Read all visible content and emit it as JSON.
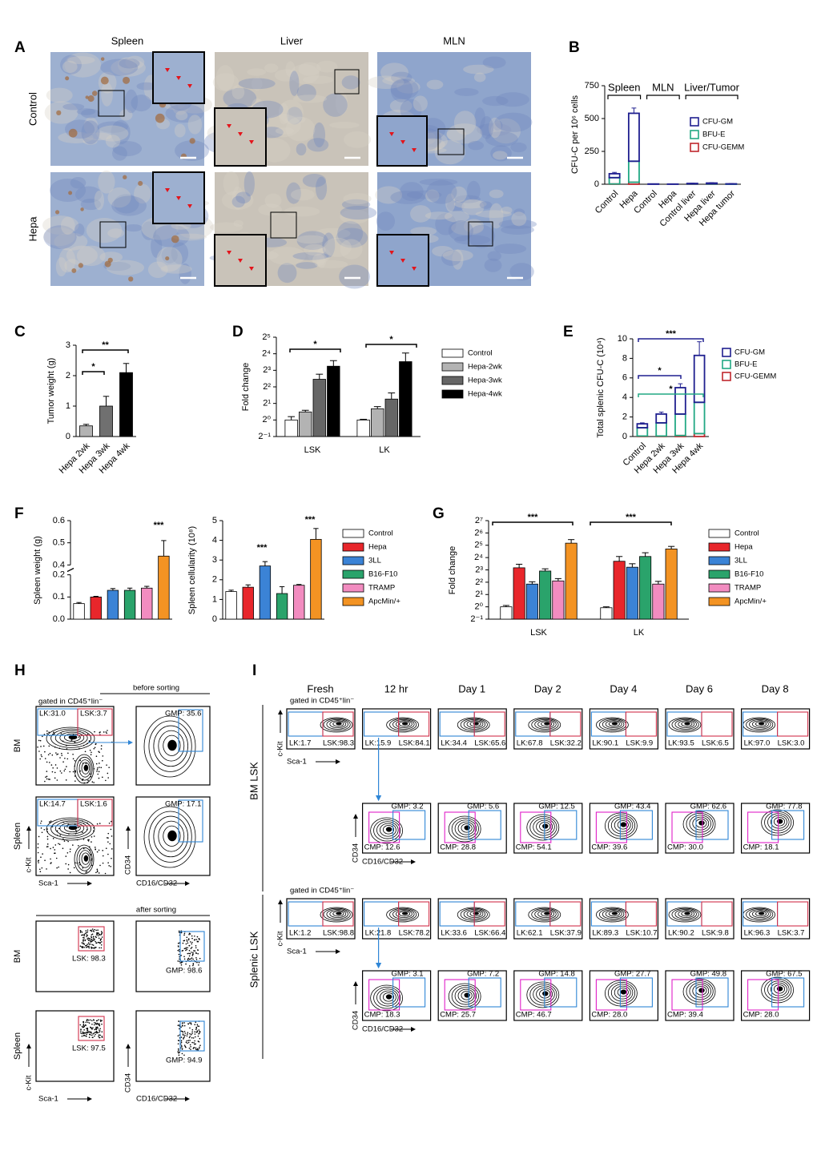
{
  "panel_labels": [
    "A",
    "B",
    "C",
    "D",
    "E",
    "F",
    "G",
    "H",
    "I"
  ],
  "micrographs": {
    "columns": [
      "Spleen",
      "Liver",
      "MLN"
    ],
    "rows": [
      "Control",
      "Hepa"
    ]
  },
  "chart_data": [
    {
      "type": "bar",
      "stacked": true,
      "y_label": "CFU-C per 10⁶ cells",
      "groups": [
        "Spleen",
        "MLN",
        "Liver/Tumor"
      ],
      "categories": [
        "Control",
        "Hepa",
        "Control",
        "Hepa",
        "Control liver",
        "Hepa liver",
        "Hepa tumor"
      ],
      "ylim": [
        0,
        750
      ],
      "yticks": [
        0,
        250,
        500,
        750
      ],
      "series": [
        {
          "name": "CFU-GEMM",
          "color": "#c0272d",
          "values": [
            2,
            15,
            0,
            0,
            1,
            1,
            0
          ]
        },
        {
          "name": "BFU-E",
          "color": "#22a884",
          "values": [
            48,
            160,
            0,
            0,
            2,
            3,
            1
          ]
        },
        {
          "name": "CFU-GM",
          "color": "#1f1f8f",
          "values": [
            30,
            365,
            2,
            1,
            3,
            5,
            2
          ],
          "errors": [
            10,
            40,
            1,
            1,
            2,
            3,
            2
          ]
        }
      ]
    },
    {
      "type": "bar",
      "y_label": "Tumor weight (g)",
      "categories": [
        "Hepa 2wk",
        "Hepa 3wk",
        "Hepa 4wk"
      ],
      "values": [
        0.35,
        1.0,
        2.1
      ],
      "errors": [
        0.05,
        0.32,
        0.3
      ],
      "colors": [
        "#b3b3b3",
        "#707070",
        "#000000"
      ],
      "ylim": [
        0,
        3
      ],
      "yticks": [
        0,
        1,
        2,
        3
      ],
      "annotations": [
        {
          "text": "*"
        },
        {
          "text": "**"
        }
      ]
    },
    {
      "type": "bar",
      "log_base": 2,
      "y_label": "Fold change",
      "categories": [
        "LSK",
        "LK"
      ],
      "ylim": [
        0.5,
        32
      ],
      "yticks": [
        {
          "value": 0.5,
          "label": "2⁻¹"
        },
        {
          "value": 1,
          "label": "2⁰"
        },
        {
          "value": 2,
          "label": "2¹"
        },
        {
          "value": 4,
          "label": "2²"
        },
        {
          "value": 8,
          "label": "2³"
        },
        {
          "value": 16,
          "label": "2⁴"
        },
        {
          "value": 32,
          "label": "2⁵"
        }
      ],
      "series": [
        {
          "name": "Control",
          "color": "#ffffff",
          "values": [
            1,
            1
          ],
          "errors": [
            0.15,
            0.03
          ]
        },
        {
          "name": "Hepa-2wk",
          "color": "#b3b3b3",
          "values": [
            1.4,
            1.6
          ],
          "errors": [
            0.1,
            0.15
          ]
        },
        {
          "name": "Hepa-3wk",
          "color": "#666666",
          "values": [
            5.5,
            2.4
          ],
          "errors": [
            1.3,
            0.7
          ]
        },
        {
          "name": "Hepa-4wk",
          "color": "#000000",
          "values": [
            9.5,
            11.5
          ],
          "errors": [
            2.5,
            5
          ]
        }
      ],
      "annotations": [
        {
          "text": "*"
        },
        {
          "text": "*"
        }
      ]
    },
    {
      "type": "bar",
      "stacked": true,
      "y_label": "Total splenic CFU-C (10⁴)",
      "categories": [
        "Control",
        "Hepa 2wk",
        "Hepa 3wk",
        "Hepa 4wk"
      ],
      "ylim": [
        0,
        10
      ],
      "yticks": [
        0,
        2,
        4,
        6,
        8,
        10
      ],
      "series": [
        {
          "name": "CFU-GEMM",
          "color": "#c0272d",
          "values": [
            0.05,
            0.05,
            0.1,
            0.3
          ]
        },
        {
          "name": "BFU-E",
          "color": "#22a884",
          "values": [
            0.85,
            1.35,
            2.2,
            3.2
          ]
        },
        {
          "name": "CFU-GM",
          "color": "#1f1f8f",
          "values": [
            0.4,
            0.9,
            2.7,
            4.8
          ],
          "errors": [
            0.1,
            0.2,
            0.4,
            1.4
          ]
        }
      ],
      "annotations": [
        {
          "text": "***",
          "color": "#1f1f8f"
        },
        {
          "text": "*",
          "color": "#1f1f8f"
        },
        {
          "text": "*",
          "color": "#22a884"
        }
      ]
    },
    {
      "type": "bar",
      "y_label": "Spleen weight (g)",
      "values": [
        0.07,
        0.1,
        0.13,
        0.13,
        0.14,
        0.44
      ],
      "errors": [
        0.005,
        0.003,
        0.008,
        0.01,
        0.008,
        0.07
      ],
      "colors": [
        "#ffffff",
        "#e8262b",
        "#3b83d6",
        "#2aa36b",
        "#f28cc0",
        "#f39323"
      ],
      "ylim": [
        0,
        0.6
      ],
      "axis_break": [
        0.2,
        0.4
      ],
      "yticks": [
        {
          "value": 0,
          "label": "0.0"
        },
        0.1,
        0.2,
        0.4,
        0.5,
        0.6
      ],
      "annotations": [
        {
          "text": "***"
        }
      ]
    },
    {
      "type": "bar",
      "y_label": "Spleen cellularity (10⁸)",
      "categories": [
        "Control",
        "Hepa",
        "3LL",
        "B16-F10",
        "TRAMP",
        "ApcMin/+"
      ],
      "values": [
        1.4,
        1.62,
        2.7,
        1.3,
        1.72,
        4.05
      ],
      "errors": [
        0.07,
        0.12,
        0.22,
        0.35,
        0.04,
        0.55
      ],
      "colors": [
        "#ffffff",
        "#e8262b",
        "#3b83d6",
        "#2aa36b",
        "#f28cc0",
        "#f39323"
      ],
      "ylim": [
        0,
        5
      ],
      "yticks": [
        0,
        1,
        2,
        3,
        4,
        5
      ],
      "annotations": [
        {
          "text": "***"
        },
        {
          "text": "***"
        }
      ]
    },
    {
      "type": "bar",
      "log_base": 2,
      "y_label": "Fold change",
      "categories": [
        "LSK",
        "LK"
      ],
      "ylim": [
        0.5,
        128
      ],
      "yticks": [
        {
          "value": 0.5,
          "label": "2⁻¹"
        },
        {
          "value": 1,
          "label": "2⁰"
        },
        {
          "value": 2,
          "label": "2¹"
        },
        {
          "value": 4,
          "label": "2²"
        },
        {
          "value": 8,
          "label": "2³"
        },
        {
          "value": 16,
          "label": "2⁴"
        },
        {
          "value": 32,
          "label": "2⁵"
        },
        {
          "value": 64,
          "label": "2⁶"
        },
        {
          "value": 128,
          "label": "2⁷"
        }
      ],
      "series": [
        {
          "name": "Control",
          "color": "#ffffff",
          "values": [
            1,
            0.95
          ],
          "errors": [
            0.08,
            0.05
          ]
        },
        {
          "name": "Hepa",
          "color": "#e8262b",
          "values": [
            9,
            13
          ],
          "errors": [
            2,
            4
          ]
        },
        {
          "name": "3LL",
          "color": "#3b83d6",
          "values": [
            3.6,
            9.3
          ],
          "errors": [
            0.5,
            2
          ]
        },
        {
          "name": "B16-F10",
          "color": "#2aa36b",
          "values": [
            7.5,
            17
          ],
          "errors": [
            1,
            4
          ]
        },
        {
          "name": "TRAMP",
          "color": "#f28cc0",
          "values": [
            4.3,
            3.6
          ],
          "errors": [
            0.6,
            0.6
          ]
        },
        {
          "name": "ApcMin/+",
          "color": "#f39323",
          "values": [
            36,
            26
          ],
          "errors": [
            8,
            4
          ]
        }
      ],
      "annotations": [
        {
          "text": "***"
        },
        {
          "text": "***"
        }
      ]
    }
  ],
  "axis_labels": {
    "ckit": "c-Kit",
    "sca1": "Sca-1",
    "cd34": "CD34",
    "cd16": "CD16/CD32"
  },
  "gate_note": "gated in CD45⁺lin⁻",
  "sorting": {
    "before_title": "before sorting",
    "after_title": "after sorting",
    "rows": [
      "BM",
      "Spleen"
    ],
    "before": [
      [
        "LK:31.0",
        "LSK:3.7",
        "GMP: 35.6"
      ],
      [
        "LK:14.7",
        "LSK:1.6",
        "GMP: 17.1"
      ]
    ],
    "after": [
      [
        "LSK: 98.3",
        "GMP: 98.6"
      ],
      [
        "LSK: 97.5",
        "GMP: 94.9"
      ]
    ]
  },
  "culture": {
    "columns": [
      "Fresh",
      "12 hr",
      "Day 1",
      "Day 2",
      "Day 4",
      "Day 6",
      "Day 8"
    ],
    "blocks": [
      {
        "name": "BM LSK",
        "lk_lsk": [
          [
            "LK:1.7",
            "LSK:98.3"
          ],
          [
            "LK:15.9",
            "LSK:84.1"
          ],
          [
            "LK:34.4",
            "LSK:65.6"
          ],
          [
            "LK:67.8",
            "LSK:32.2"
          ],
          [
            "LK:90.1",
            "LSK:9.9"
          ],
          [
            "LK:93.5",
            "LSK:6.5"
          ],
          [
            "LK:97.0",
            "LSK:3.0"
          ]
        ],
        "gmp_cmp": [
          [
            "GMP: 3.2",
            "CMP: 12.6"
          ],
          [
            "GMP: 5.6",
            "CMP: 28.8"
          ],
          [
            "GMP: 12.5",
            "CMP: 54.1"
          ],
          [
            "GMP: 43.4",
            "CMP: 39.6"
          ],
          [
            "GMP: 62.6",
            "CMP: 30.0"
          ],
          [
            "GMP: 77.8",
            "CMP: 18.1"
          ]
        ]
      },
      {
        "name": "Splenic LSK",
        "lk_lsk": [
          [
            "LK:1.2",
            "LSK:98.8"
          ],
          [
            "LK:21.8",
            "LSK:78.2"
          ],
          [
            "LK:33.6",
            "LSK:66.4"
          ],
          [
            "LK:62.1",
            "LSK:37.9"
          ],
          [
            "LK:89.3",
            "LSK:10.7"
          ],
          [
            "LK:90.2",
            "LSK:9.8"
          ],
          [
            "LK:96.3",
            "LSK:3.7"
          ]
        ],
        "gmp_cmp": [
          [
            "GMP: 3.1",
            "CMP: 18.3"
          ],
          [
            "GMP: 7.2",
            "CMP: 25.7"
          ],
          [
            "GMP: 14.8",
            "CMP: 46.7"
          ],
          [
            "GMP: 27.7",
            "CMP: 28.0"
          ],
          [
            "GMP: 49.8",
            "CMP: 39.4"
          ],
          [
            "GMP: 67.5",
            "CMP: 28.0"
          ]
        ]
      }
    ]
  }
}
